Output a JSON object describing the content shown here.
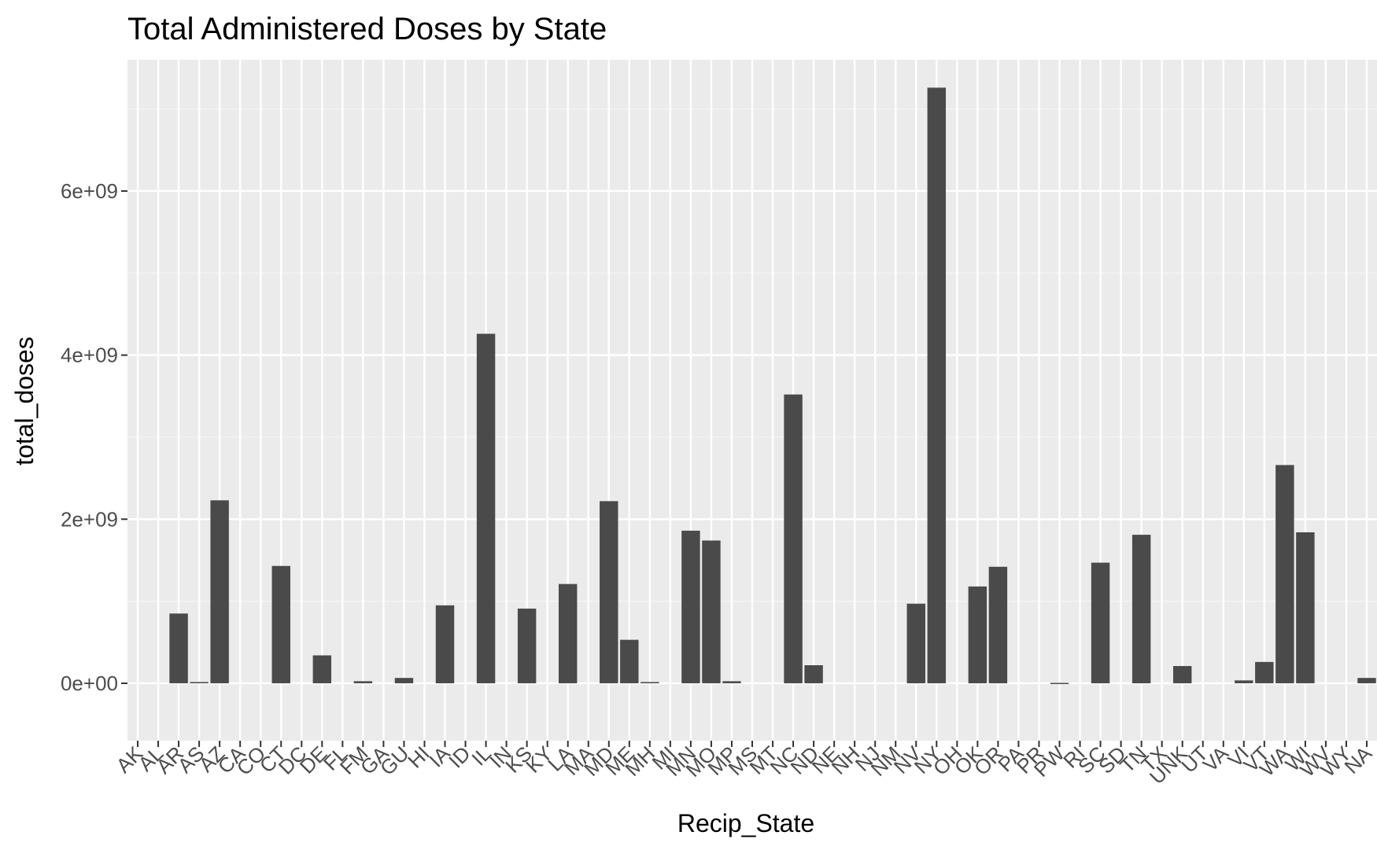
{
  "colors": {
    "panel_background": "#ebebeb",
    "grid_major": "#ffffff",
    "grid_minor": "#f5f5f5",
    "bar_fill": "#4a4a4a",
    "tick_text": "#4d4d4d",
    "text": "#000000"
  },
  "chart_data": {
    "type": "bar",
    "title": "Total Administered Doses by State",
    "xlabel": "Recip_State",
    "ylabel": "total_doses",
    "ylim": [
      -700000000,
      7600000000
    ],
    "yticks": [
      0,
      2000000000,
      4000000000,
      6000000000
    ],
    "ytick_labels": [
      "0e+00",
      "2e+09",
      "4e+09",
      "6e+09"
    ],
    "grid": true,
    "categories": [
      "AK",
      "AL",
      "AR",
      "AS",
      "AZ",
      "CA",
      "CO",
      "CT",
      "DC",
      "DE",
      "FL",
      "FM",
      "GA",
      "GU",
      "HI",
      "IA",
      "ID",
      "IL",
      "IN",
      "KS",
      "KY",
      "LA",
      "MA",
      "MD",
      "ME",
      "MH",
      "MI",
      "MN",
      "MO",
      "MP",
      "MS",
      "MT",
      "NC",
      "ND",
      "NE",
      "NH",
      "NJ",
      "NM",
      "NV",
      "NY",
      "OH",
      "OK",
      "OR",
      "PA",
      "PR",
      "PW",
      "RI",
      "SC",
      "SD",
      "TN",
      "TX",
      "UNK",
      "UT",
      "VA",
      "VI",
      "VT",
      "WA",
      "WI",
      "WV",
      "WY",
      "NA"
    ],
    "values": [
      0,
      0,
      850000000,
      15000000,
      2230000000,
      0,
      0,
      1430000000,
      0,
      340000000,
      0,
      25000000,
      0,
      65000000,
      0,
      950000000,
      0,
      4260000000,
      0,
      910000000,
      0,
      1210000000,
      0,
      2220000000,
      530000000,
      15000000,
      0,
      1860000000,
      1740000000,
      25000000,
      0,
      0,
      3520000000,
      220000000,
      0,
      0,
      0,
      0,
      970000000,
      7260000000,
      0,
      1180000000,
      1420000000,
      0,
      0,
      5000000,
      0,
      1470000000,
      0,
      1810000000,
      0,
      210000000,
      0,
      0,
      35000000,
      260000000,
      2660000000,
      1840000000,
      0,
      0,
      65000000
    ]
  }
}
